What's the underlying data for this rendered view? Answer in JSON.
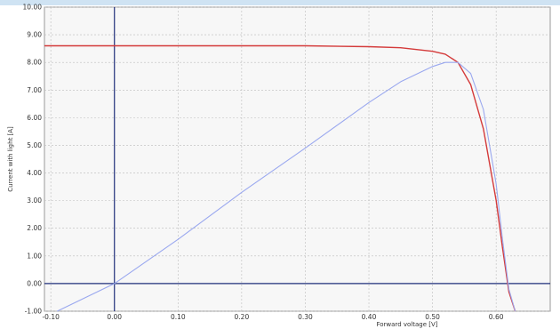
{
  "colors": {
    "background": "#ffffff",
    "plot_area": "#f7f7f7",
    "grid": "#bdbdbd",
    "zero_lines": "#1f2f7a",
    "iv_curve": "#d43a3a",
    "power_curve": "#9aa8ef"
  },
  "chart_data": {
    "type": "line",
    "title": "",
    "xlabel": "Forward voltage [V]",
    "ylabel": "Current with light [A]",
    "xlim": [
      -0.11,
      0.685
    ],
    "ylim": [
      -1.0,
      10.0
    ],
    "x_ticks": [
      "-0.10",
      "0.00",
      "0.10",
      "0.20",
      "0.30",
      "0.40",
      "0.50",
      "0.60"
    ],
    "x_tick_values": [
      -0.1,
      0.0,
      0.1,
      0.2,
      0.3,
      0.4,
      0.5,
      0.6
    ],
    "y_ticks": [
      "-1.00",
      "0.00",
      "1.00",
      "2.00",
      "3.00",
      "4.00",
      "5.00",
      "6.00",
      "7.00",
      "8.00",
      "9.00",
      "10.00"
    ],
    "y_tick_values": [
      -1,
      0,
      1,
      2,
      3,
      4,
      5,
      6,
      7,
      8,
      9,
      10
    ],
    "grid": true,
    "series": [
      {
        "color": "#d43a3a",
        "x": [
          -0.11,
          0.0,
          0.1,
          0.2,
          0.3,
          0.4,
          0.45,
          0.5,
          0.52,
          0.54,
          0.56,
          0.58,
          0.6,
          0.61,
          0.62,
          0.63
        ],
        "y": [
          8.6,
          8.6,
          8.6,
          8.6,
          8.6,
          8.57,
          8.53,
          8.4,
          8.3,
          8.0,
          7.2,
          5.6,
          3.0,
          1.3,
          -0.3,
          -1.0
        ]
      },
      {
        "color": "#9aa8ef",
        "x": [
          -0.09,
          0.0,
          0.1,
          0.2,
          0.3,
          0.4,
          0.45,
          0.5,
          0.52,
          0.54,
          0.56,
          0.58,
          0.6,
          0.61,
          0.62,
          0.63
        ],
        "y": [
          -1.0,
          0.0,
          1.6,
          3.3,
          4.9,
          6.55,
          7.3,
          7.85,
          8.0,
          8.0,
          7.6,
          6.3,
          3.6,
          1.6,
          -0.2,
          -1.0
        ]
      }
    ]
  }
}
